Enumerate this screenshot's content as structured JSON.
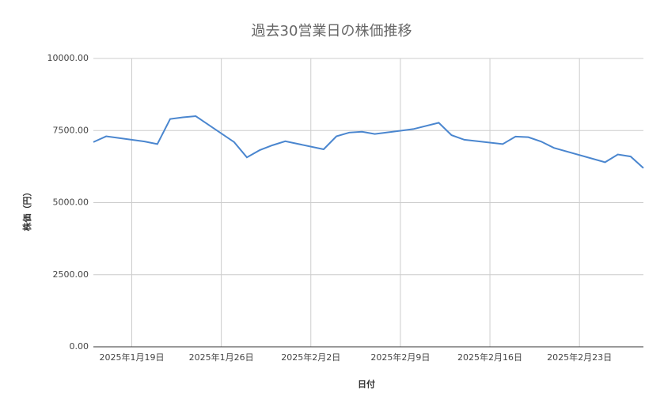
{
  "chart_data": {
    "type": "line",
    "title": "過去30営業日の株価推移",
    "x_label": "日付",
    "y_label": "株価（円）",
    "x": [
      "2025-01-16",
      "2025-01-17",
      "2025-01-20",
      "2025-01-21",
      "2025-01-22",
      "2025-01-23",
      "2025-01-24",
      "2025-01-27",
      "2025-01-28",
      "2025-01-29",
      "2025-01-30",
      "2025-01-31",
      "2025-02-03",
      "2025-02-04",
      "2025-02-05",
      "2025-02-06",
      "2025-02-07",
      "2025-02-10",
      "2025-02-12",
      "2025-02-13",
      "2025-02-14",
      "2025-02-17",
      "2025-02-18",
      "2025-02-19",
      "2025-02-20",
      "2025-02-21",
      "2025-02-25",
      "2025-02-26",
      "2025-02-27",
      "2025-02-28"
    ],
    "series": [
      {
        "name": "株価",
        "color": "#4a86cf",
        "values": [
          7100,
          7300,
          7120,
          7030,
          7900,
          7960,
          8000,
          7100,
          6570,
          6820,
          6990,
          7130,
          6850,
          7300,
          7430,
          7460,
          7380,
          7550,
          7770,
          7340,
          7180,
          7030,
          7290,
          7270,
          7120,
          6900,
          6400,
          6670,
          6600,
          6200
        ]
      }
    ],
    "xlim": [
      "2025-01-16",
      "2025-02-28"
    ],
    "xticks": [
      {
        "value": "2025-01-19",
        "label": "2025年1月19日"
      },
      {
        "value": "2025-01-26",
        "label": "2025年1月26日"
      },
      {
        "value": "2025-02-02",
        "label": "2025年2月2日"
      },
      {
        "value": "2025-02-09",
        "label": "2025年2月9日"
      },
      {
        "value": "2025-02-16",
        "label": "2025年2月16日"
      },
      {
        "value": "2025-02-23",
        "label": "2025年2月23日"
      }
    ],
    "ylim": [
      0,
      10000
    ],
    "yticks": [
      {
        "value": 0,
        "label": "0.00"
      },
      {
        "value": 2500,
        "label": "2500.00"
      },
      {
        "value": 5000,
        "label": "5000.00"
      },
      {
        "value": 7500,
        "label": "7500.00"
      },
      {
        "value": 10000,
        "label": "10000.00"
      }
    ],
    "grid": true
  }
}
